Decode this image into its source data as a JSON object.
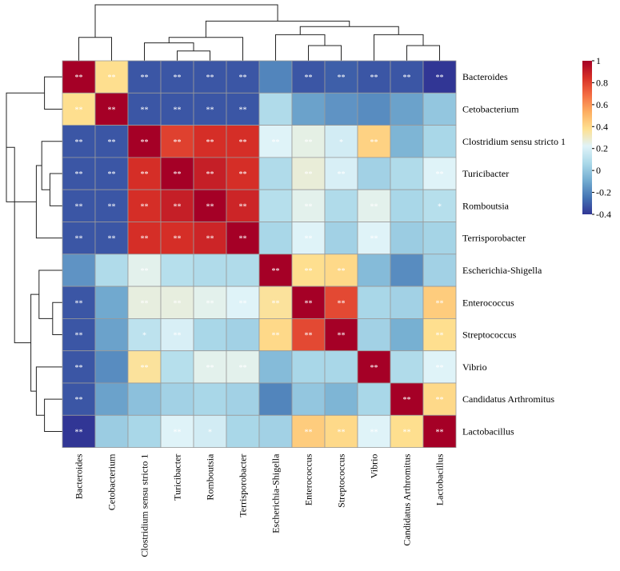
{
  "chart_data": {
    "type": "heatmap",
    "title": "",
    "rows": [
      "Bacteroides",
      "Cetobacterium",
      "Clostridium sensu stricto 1",
      "Turicibacter",
      "Romboutsia",
      "Terrisporobacter",
      "Escherichia-Shigella",
      "Enterococcus",
      "Streptococcus",
      "Vibrio",
      "Candidatus Arthromitus",
      "Lactobacillus"
    ],
    "columns": [
      "Bacteroides",
      "Cetobacterium",
      "Clostridium sensu stricto 1",
      "Turicibacter",
      "Romboutsia",
      "Terrisporobacter",
      "Escherichia-Shigella",
      "Enterococcus",
      "Streptococcus",
      "Vibrio",
      "Candidatus Arthromitus",
      "Lactobacillus"
    ],
    "values": [
      [
        1.0,
        0.38,
        -0.32,
        -0.32,
        -0.32,
        -0.32,
        -0.2,
        -0.32,
        -0.3,
        -0.32,
        -0.32,
        -0.4
      ],
      [
        0.38,
        1.0,
        -0.32,
        -0.32,
        -0.32,
        -0.32,
        0.08,
        -0.12,
        -0.16,
        -0.18,
        -0.12,
        0.0
      ],
      [
        -0.32,
        -0.32,
        1.0,
        0.8,
        0.85,
        0.85,
        0.22,
        0.25,
        0.18,
        0.42,
        -0.06,
        0.06
      ],
      [
        -0.32,
        -0.32,
        0.85,
        1.0,
        0.9,
        0.85,
        0.08,
        0.27,
        0.2,
        0.04,
        0.08,
        0.22
      ],
      [
        -0.32,
        -0.32,
        0.85,
        0.9,
        1.0,
        0.88,
        0.1,
        0.24,
        0.08,
        0.24,
        0.06,
        0.1
      ],
      [
        -0.32,
        -0.32,
        0.85,
        0.85,
        0.88,
        1.0,
        0.06,
        0.22,
        0.04,
        0.22,
        0.02,
        0.05
      ],
      [
        -0.16,
        0.08,
        0.24,
        0.1,
        0.08,
        0.08,
        1.0,
        0.38,
        0.4,
        -0.04,
        -0.18,
        0.04
      ],
      [
        -0.32,
        -0.1,
        0.26,
        0.26,
        0.24,
        0.22,
        0.36,
        1.0,
        0.78,
        0.06,
        0.04,
        0.44
      ],
      [
        -0.32,
        -0.12,
        0.12,
        0.2,
        0.06,
        0.04,
        0.4,
        0.78,
        1.0,
        0.04,
        -0.08,
        0.38
      ],
      [
        -0.32,
        -0.18,
        0.36,
        0.1,
        0.24,
        0.24,
        -0.04,
        0.06,
        0.06,
        1.0,
        0.08,
        0.22
      ],
      [
        -0.32,
        -0.12,
        -0.02,
        0.04,
        0.06,
        0.04,
        -0.2,
        0.0,
        -0.06,
        0.06,
        1.0,
        0.4
      ],
      [
        -0.4,
        0.02,
        0.06,
        0.22,
        0.18,
        0.06,
        0.04,
        0.44,
        0.4,
        0.22,
        0.38,
        1.0
      ]
    ],
    "significance": [
      [
        "**",
        "**",
        "**",
        "**",
        "**",
        "**",
        "",
        "**",
        "**",
        "**",
        "**",
        "**"
      ],
      [
        "**",
        "**",
        "**",
        "**",
        "**",
        "**",
        "",
        "",
        "",
        "",
        "",
        ""
      ],
      [
        "**",
        "**",
        "**",
        "**",
        "**",
        "**",
        "**",
        "**",
        "*",
        "**",
        "",
        ""
      ],
      [
        "**",
        "**",
        "**",
        "**",
        "**",
        "**",
        "",
        "**",
        "**",
        "",
        "",
        "**"
      ],
      [
        "**",
        "**",
        "**",
        "**",
        "**",
        "**",
        "",
        "**",
        "",
        "**",
        "",
        "*"
      ],
      [
        "**",
        "**",
        "**",
        "**",
        "**",
        "**",
        "",
        "**",
        "",
        "**",
        "",
        ""
      ],
      [
        "",
        "",
        "**",
        "",
        "",
        "",
        "**",
        "**",
        "**",
        "",
        "",
        ""
      ],
      [
        "**",
        "",
        "**",
        "**",
        "**",
        "**",
        "**",
        "**",
        "**",
        "",
        "",
        "**"
      ],
      [
        "**",
        "",
        "*",
        "**",
        "",
        "",
        "**",
        "**",
        "**",
        "",
        "",
        "**"
      ],
      [
        "**",
        "",
        "**",
        "",
        "**",
        "**",
        "",
        "",
        "",
        "**",
        "",
        "**"
      ],
      [
        "**",
        "",
        "",
        "",
        "",
        "",
        "",
        "",
        "",
        "",
        "**",
        "**"
      ],
      [
        "**",
        "",
        "",
        "**",
        "*",
        "",
        "",
        "**",
        "**",
        "**",
        "**",
        "**"
      ]
    ],
    "colorbar": {
      "min": -0.4,
      "max": 1,
      "ticks": [
        "1",
        "0.8",
        "0.6",
        "0.4",
        "0.2",
        "0",
        "-0.2",
        "-0.4"
      ],
      "tick_values": [
        1,
        0.8,
        0.6,
        0.4,
        0.2,
        0,
        -0.2,
        -0.4
      ],
      "palette": [
        "#313695",
        "#4575b4",
        "#74add1",
        "#abd9e9",
        "#e0f3f8",
        "#fee090",
        "#fdae61",
        "#f46d43",
        "#d73027",
        "#a50026"
      ]
    },
    "row_dendrogram": [
      {
        "a": [
          0
        ],
        "b": [
          1
        ],
        "h": 0.3
      },
      {
        "a": [
          3
        ],
        "b": [
          4
        ],
        "h": 0.2
      },
      {
        "a": [
          2
        ],
        "b": [
          3,
          4
        ],
        "h": 0.35
      },
      {
        "a": [
          2,
          3,
          4
        ],
        "b": [
          5
        ],
        "h": 0.45
      },
      {
        "a": [
          0,
          1
        ],
        "b": [
          2,
          3,
          4,
          5
        ],
        "h": 1.0
      },
      {
        "a": [
          7
        ],
        "b": [
          8
        ],
        "h": 0.15
      },
      {
        "a": [
          6
        ],
        "b": [
          7,
          8
        ],
        "h": 0.4
      },
      {
        "a": [
          10
        ],
        "b": [
          11
        ],
        "h": 0.3
      },
      {
        "a": [
          9
        ],
        "b": [
          10,
          11
        ],
        "h": 0.45
      },
      {
        "a": [
          6,
          7,
          8
        ],
        "b": [
          9,
          10,
          11
        ],
        "h": 0.55
      },
      {
        "a": [
          0,
          1,
          2,
          3,
          4,
          5
        ],
        "b": [
          6,
          7,
          8,
          9,
          10,
          11
        ],
        "h": 0.85
      }
    ],
    "col_dendrogram": [
      {
        "a": [
          0
        ],
        "b": [
          1
        ],
        "h": 0.4
      },
      {
        "a": [
          3
        ],
        "b": [
          4
        ],
        "h": 0.15
      },
      {
        "a": [
          2
        ],
        "b": [
          3,
          4
        ],
        "h": 0.3
      },
      {
        "a": [
          2,
          3,
          4
        ],
        "b": [
          5
        ],
        "h": 0.4
      },
      {
        "a": [
          7
        ],
        "b": [
          8
        ],
        "h": 0.25
      },
      {
        "a": [
          6
        ],
        "b": [
          7,
          8
        ],
        "h": 0.45
      },
      {
        "a": [
          10
        ],
        "b": [
          11
        ],
        "h": 0.25
      },
      {
        "a": [
          9
        ],
        "b": [
          10,
          11
        ],
        "h": 0.45
      },
      {
        "a": [
          6,
          7,
          8
        ],
        "b": [
          9,
          10,
          11
        ],
        "h": 0.6
      },
      {
        "a": [
          2,
          3,
          4,
          5
        ],
        "b": [
          6,
          7,
          8,
          9,
          10,
          11
        ],
        "h": 0.7
      },
      {
        "a": [
          0,
          1
        ],
        "b": [
          2,
          3,
          4,
          5,
          6,
          7,
          8,
          9,
          10,
          11
        ],
        "h": 1.0
      }
    ]
  }
}
